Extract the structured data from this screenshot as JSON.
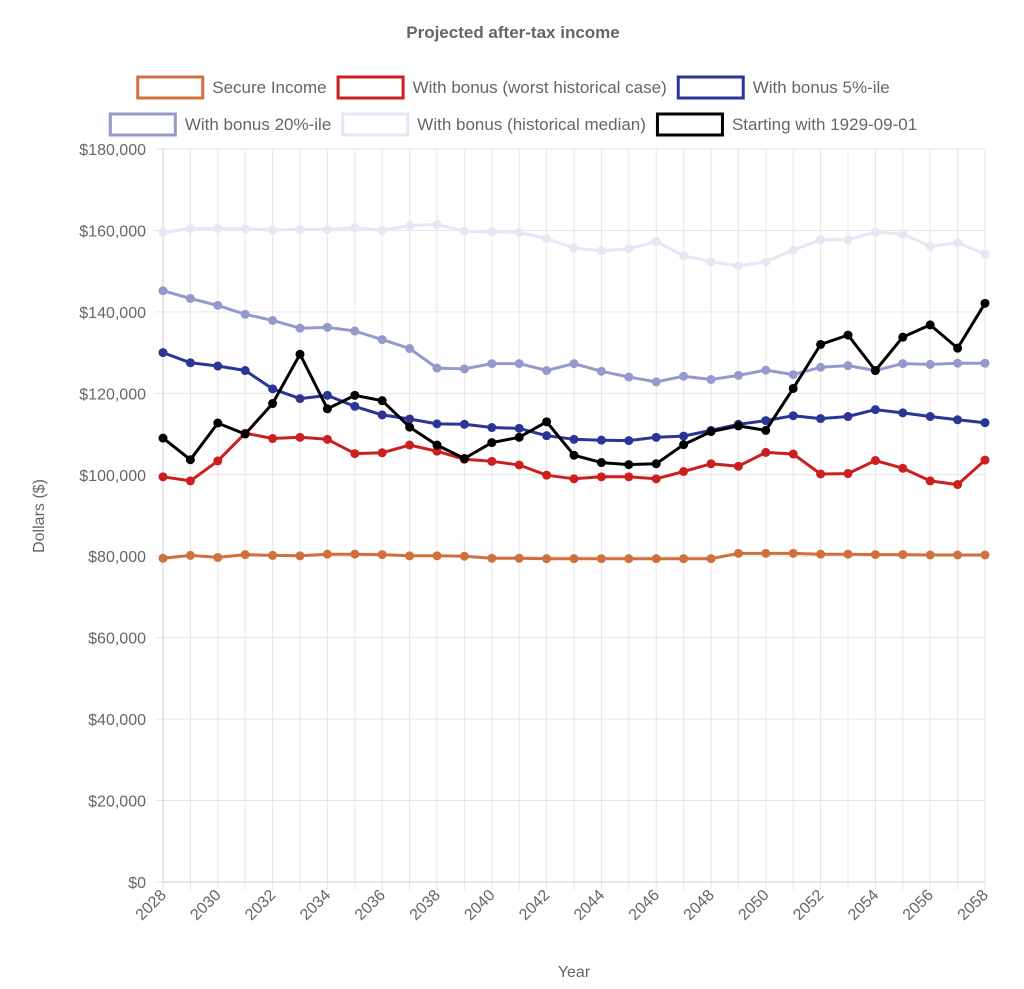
{
  "chart_data": {
    "type": "line",
    "title": "Projected after-tax income",
    "xlabel": "Year",
    "ylabel": "Dollars ($)",
    "ylim": [
      0,
      180000
    ],
    "yticks": [
      0,
      20000,
      40000,
      60000,
      80000,
      100000,
      120000,
      140000,
      160000,
      180000
    ],
    "ytick_labels": [
      "$0",
      "$20,000",
      "$40,000",
      "$60,000",
      "$80,000",
      "$100,000",
      "$120,000",
      "$140,000",
      "$160,000",
      "$180,000"
    ],
    "x": [
      2028,
      2029,
      2030,
      2031,
      2032,
      2033,
      2034,
      2035,
      2036,
      2037,
      2038,
      2039,
      2040,
      2041,
      2042,
      2043,
      2044,
      2045,
      2046,
      2047,
      2048,
      2049,
      2050,
      2051,
      2052,
      2053,
      2054,
      2055,
      2056,
      2057,
      2058
    ],
    "xtick_labels": [
      "2028",
      "2030",
      "2032",
      "2034",
      "2036",
      "2038",
      "2040",
      "2042",
      "2044",
      "2046",
      "2048",
      "2050",
      "2052",
      "2054",
      "2056",
      "2058"
    ],
    "grid": true,
    "legend_position": "top",
    "series": [
      {
        "name": "Secure Income",
        "color": "#d0703c",
        "values": [
          79500,
          80200,
          79700,
          80400,
          80200,
          80100,
          80500,
          80500,
          80400,
          80100,
          80100,
          80000,
          79500,
          79500,
          79400,
          79400,
          79400,
          79400,
          79400,
          79400,
          79400,
          80700,
          80700,
          80700,
          80500,
          80500,
          80400,
          80400,
          80300,
          80300,
          80300
        ]
      },
      {
        "name": "With bonus (worst historical case)",
        "color": "#cc1f1f",
        "values": [
          99500,
          98500,
          103400,
          110200,
          108900,
          109200,
          108700,
          105200,
          105400,
          107300,
          105800,
          103800,
          103300,
          102400,
          99900,
          99000,
          99500,
          99500,
          99000,
          100800,
          102700,
          102100,
          105500,
          105100,
          100200,
          100300,
          103500,
          101600,
          98500,
          97600,
          103600
        ]
      },
      {
        "name": "With bonus 5%-ile",
        "color": "#2a3595",
        "values": [
          130000,
          127500,
          126700,
          125600,
          121100,
          118700,
          119500,
          116800,
          114700,
          113700,
          112500,
          112400,
          111600,
          111400,
          109600,
          108700,
          108500,
          108400,
          109200,
          109500,
          110900,
          112400,
          113300,
          114500,
          113800,
          114300,
          116000,
          115200,
          114300,
          113500,
          112800
        ]
      },
      {
        "name": "With bonus 20%-ile",
        "color": "#9599cd",
        "values": [
          145200,
          143300,
          141600,
          139400,
          137900,
          136000,
          136200,
          135300,
          133200,
          131000,
          126200,
          126000,
          127300,
          127300,
          125600,
          127300,
          125400,
          124000,
          122800,
          124200,
          123400,
          124400,
          125700,
          124600,
          126400,
          126800,
          125600,
          127300,
          127100,
          127400,
          127400
        ]
      },
      {
        "name": "With bonus (historical median)",
        "color": "#e6e6f4",
        "values": [
          159500,
          160500,
          160500,
          160400,
          160100,
          160300,
          160200,
          160700,
          160000,
          161200,
          161500,
          159800,
          159700,
          159500,
          158000,
          155700,
          155000,
          155500,
          157300,
          153800,
          152300,
          151300,
          152300,
          155200,
          157700,
          157700,
          159600,
          159100,
          156100,
          157000,
          154200
        ]
      },
      {
        "name": "Starting with 1929-09-01",
        "color": "#000000",
        "values": [
          109000,
          103700,
          112700,
          110000,
          117500,
          129600,
          116200,
          119500,
          118200,
          111700,
          107300,
          104000,
          107900,
          109200,
          113000,
          104800,
          103000,
          102500,
          102700,
          107400,
          110600,
          112000,
          110900,
          121200,
          132000,
          134300,
          125600,
          133800,
          136800,
          131100,
          142100
        ]
      }
    ]
  }
}
